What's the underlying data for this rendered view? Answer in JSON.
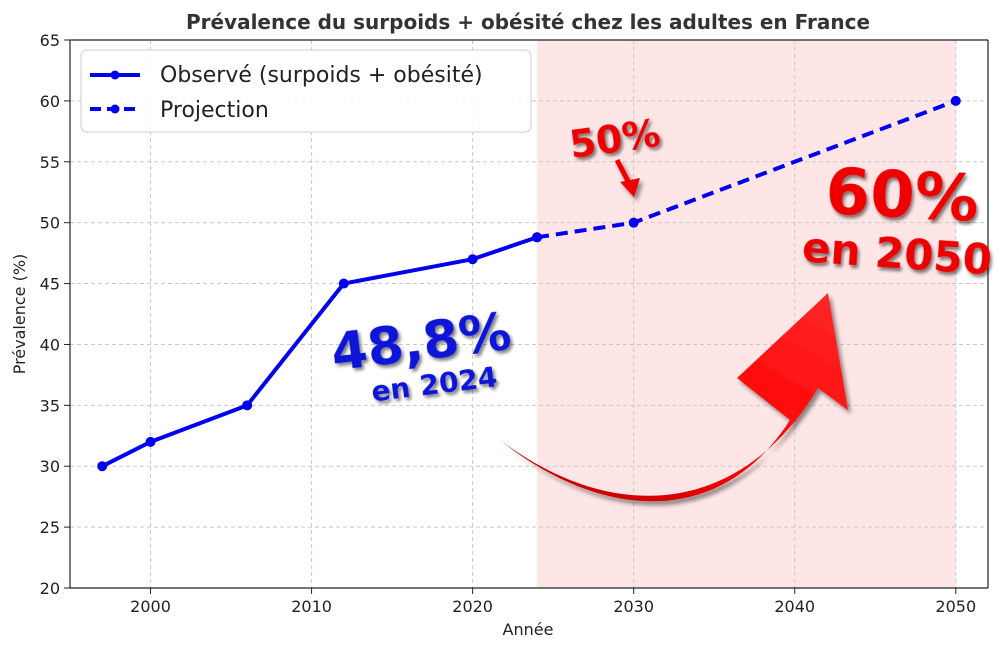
{
  "chart_data": {
    "type": "line",
    "title": "Prévalence du surpoids + obésité chez les adultes en France",
    "xlabel": "Année",
    "ylabel": "Prévalence (%)",
    "xlim": [
      1995,
      2052
    ],
    "ylim": [
      20,
      65
    ],
    "xticks": [
      2000,
      2010,
      2020,
      2030,
      2040,
      2050
    ],
    "yticks": [
      20,
      25,
      30,
      35,
      40,
      45,
      50,
      55,
      60,
      65
    ],
    "grid": true,
    "legend_position": "top-left",
    "shaded_region": {
      "x": [
        2024,
        2050
      ],
      "color": "#ffe6e6"
    },
    "series": [
      {
        "name": "Observé (surpoids + obésité)",
        "style": "solid",
        "color": "#0000ee",
        "x": [
          1997,
          2000,
          2006,
          2012,
          2020,
          2024
        ],
        "y": [
          30,
          32,
          35,
          45,
          47,
          48.8
        ]
      },
      {
        "name": "Projection",
        "style": "dashed",
        "color": "#0000ee",
        "x": [
          2024,
          2030,
          2050
        ],
        "y": [
          48.8,
          50,
          60
        ]
      }
    ],
    "annotations": {
      "current_value": "48,8%",
      "current_year": "en 2024",
      "mid_value": "50%",
      "target_value": "60%",
      "target_year": "en 2050"
    },
    "colors": {
      "annotation_blue": "#0a14d8",
      "annotation_red": "#ee0000",
      "arrow_red": "#ff0000"
    }
  }
}
